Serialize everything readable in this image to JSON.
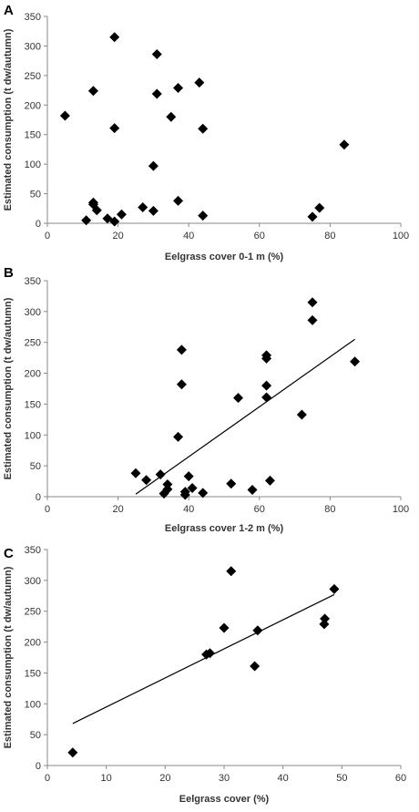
{
  "chart_data": [
    {
      "type": "scatter",
      "panel": "A",
      "xlabel": "Eelgrass cover 0-1 m (%)",
      "ylabel": "Estimated consumption (t dw/autumn)",
      "xlim": [
        0,
        100
      ],
      "ylim": [
        0,
        350
      ],
      "xticks": [
        0,
        20,
        40,
        60,
        80,
        100
      ],
      "yticks": [
        0,
        50,
        100,
        150,
        200,
        250,
        300,
        350
      ],
      "trendline": false,
      "points": [
        {
          "x": 5,
          "y": 182
        },
        {
          "x": 11,
          "y": 5
        },
        {
          "x": 13,
          "y": 32
        },
        {
          "x": 13,
          "y": 35
        },
        {
          "x": 13,
          "y": 224
        },
        {
          "x": 14,
          "y": 22
        },
        {
          "x": 17,
          "y": 8
        },
        {
          "x": 19,
          "y": 3
        },
        {
          "x": 19,
          "y": 161
        },
        {
          "x": 19,
          "y": 315
        },
        {
          "x": 21,
          "y": 15
        },
        {
          "x": 27,
          "y": 27
        },
        {
          "x": 30,
          "y": 97
        },
        {
          "x": 30,
          "y": 21
        },
        {
          "x": 31,
          "y": 219
        },
        {
          "x": 31,
          "y": 286
        },
        {
          "x": 35,
          "y": 180
        },
        {
          "x": 37,
          "y": 38
        },
        {
          "x": 37,
          "y": 229
        },
        {
          "x": 43,
          "y": 238
        },
        {
          "x": 44,
          "y": 160
        },
        {
          "x": 44,
          "y": 13
        },
        {
          "x": 75,
          "y": 11
        },
        {
          "x": 77,
          "y": 26
        },
        {
          "x": 84,
          "y": 133
        }
      ]
    },
    {
      "type": "scatter",
      "panel": "B",
      "xlabel": "Eelgrass cover 1-2 m (%)",
      "ylabel": "Estimated consumption (t dw/autumn)",
      "xlim": [
        0,
        100
      ],
      "ylim": [
        0,
        350
      ],
      "xticks": [
        0,
        20,
        40,
        60,
        80,
        100
      ],
      "yticks": [
        0,
        50,
        100,
        150,
        200,
        250,
        300,
        350
      ],
      "trendline": true,
      "trend_endpoints": [
        [
          25,
          4
        ],
        [
          87,
          255
        ]
      ],
      "points": [
        {
          "x": 25,
          "y": 38
        },
        {
          "x": 28,
          "y": 27
        },
        {
          "x": 32,
          "y": 36
        },
        {
          "x": 33,
          "y": 5
        },
        {
          "x": 34,
          "y": 20
        },
        {
          "x": 34,
          "y": 12
        },
        {
          "x": 37,
          "y": 97
        },
        {
          "x": 38,
          "y": 182
        },
        {
          "x": 38,
          "y": 238
        },
        {
          "x": 39,
          "y": 8
        },
        {
          "x": 39,
          "y": 3
        },
        {
          "x": 40,
          "y": 33
        },
        {
          "x": 41,
          "y": 14
        },
        {
          "x": 44,
          "y": 6
        },
        {
          "x": 52,
          "y": 21
        },
        {
          "x": 54,
          "y": 160
        },
        {
          "x": 58,
          "y": 11
        },
        {
          "x": 62,
          "y": 229
        },
        {
          "x": 62,
          "y": 224
        },
        {
          "x": 62,
          "y": 180
        },
        {
          "x": 62,
          "y": 161
        },
        {
          "x": 63,
          "y": 26
        },
        {
          "x": 72,
          "y": 133
        },
        {
          "x": 75,
          "y": 286
        },
        {
          "x": 75,
          "y": 315
        },
        {
          "x": 87,
          "y": 219
        }
      ]
    },
    {
      "type": "scatter",
      "panel": "C",
      "xlabel": "Eelgrass cover (%)",
      "ylabel": "Estimated consumption (t dw/autumn)",
      "xlim": [
        0,
        60
      ],
      "ylim": [
        0,
        350
      ],
      "xticks": [
        0,
        10,
        20,
        30,
        40,
        50,
        60
      ],
      "yticks": [
        0,
        50,
        100,
        150,
        200,
        250,
        300,
        350
      ],
      "trendline": true,
      "trend_endpoints": [
        [
          4.3,
          68
        ],
        [
          48.7,
          277
        ]
      ],
      "points": [
        {
          "x": 4.3,
          "y": 21
        },
        {
          "x": 27,
          "y": 180
        },
        {
          "x": 27.6,
          "y": 182
        },
        {
          "x": 30,
          "y": 223
        },
        {
          "x": 31.2,
          "y": 315
        },
        {
          "x": 35.2,
          "y": 161
        },
        {
          "x": 35.7,
          "y": 219
        },
        {
          "x": 47,
          "y": 229
        },
        {
          "x": 47.1,
          "y": 238
        },
        {
          "x": 48.7,
          "y": 286
        }
      ]
    }
  ]
}
